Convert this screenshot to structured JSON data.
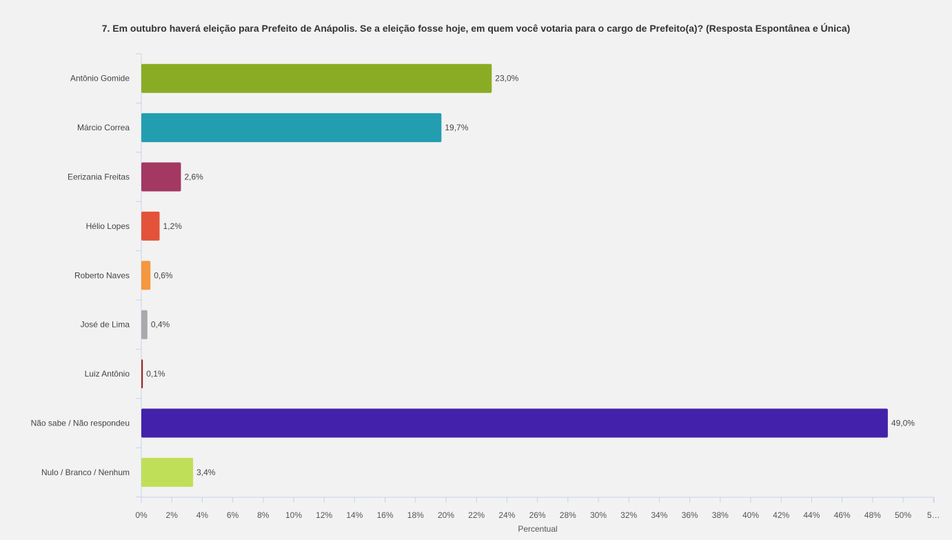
{
  "chart_data": {
    "type": "bar",
    "orientation": "horizontal",
    "title": "7. Em outubro haverá eleição para Prefeito de Anápolis. Se a eleição fosse hoje, em quem você votaria para o cargo de Prefeito(a)? (Resposta Espontânea e Única)",
    "xlabel": "Percentual",
    "ylabel": "",
    "categories": [
      "Antônio Gomide",
      "Márcio Correa",
      "Eerizania Freitas",
      "Hélio Lopes",
      "Roberto Naves",
      "José de Lima",
      "Luiz Antônio",
      "Não sabe / Não respondeu",
      "Nulo / Branco / Nenhum"
    ],
    "values": [
      23.0,
      19.7,
      2.6,
      1.2,
      0.6,
      0.4,
      0.1,
      49.0,
      3.4
    ],
    "value_labels": [
      "23,0%",
      "19,7%",
      "2,6%",
      "1,2%",
      "0,6%",
      "0,4%",
      "0,1%",
      "49,0%",
      "3,4%"
    ],
    "colors": [
      "#8aac24",
      "#229eb0",
      "#a33863",
      "#e2533a",
      "#f5973e",
      "#a9a9ad",
      "#a12828",
      "#4321aa",
      "#c0df59"
    ],
    "xlim": [
      0,
      52
    ],
    "x_ticks": [
      "0%",
      "2%",
      "4%",
      "6%",
      "8%",
      "10%",
      "12%",
      "14%",
      "16%",
      "18%",
      "20%",
      "22%",
      "24%",
      "26%",
      "28%",
      "30%",
      "32%",
      "34%",
      "36%",
      "38%",
      "40%",
      "42%",
      "44%",
      "46%",
      "48%",
      "50%",
      "5…"
    ],
    "grid": false,
    "legend": "none"
  }
}
